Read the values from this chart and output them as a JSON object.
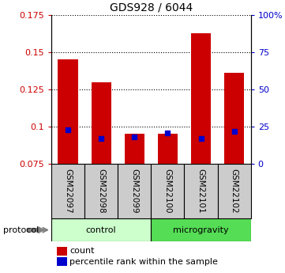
{
  "title": "GDS928 / 6044",
  "samples": [
    "GSM22097",
    "GSM22098",
    "GSM22099",
    "GSM22100",
    "GSM22101",
    "GSM22102"
  ],
  "count_values": [
    0.145,
    0.13,
    0.095,
    0.095,
    0.163,
    0.136
  ],
  "percentile_values": [
    0.098,
    0.092,
    0.093,
    0.096,
    0.092,
    0.097
  ],
  "y_min": 0.075,
  "y_max": 0.175,
  "y_ticks_left": [
    0.075,
    0.1,
    0.125,
    0.15,
    0.175
  ],
  "y_ticks_right": [
    0,
    25,
    50,
    75,
    100
  ],
  "bar_color": "#cc0000",
  "percentile_color": "#0000cc",
  "control_color_light": "#ccffcc",
  "microgravity_color": "#55dd55",
  "sample_box_color": "#cccccc",
  "legend_count_label": "count",
  "legend_percentile_label": "percentile rank within the sample",
  "protocol_label": "protocol",
  "control_label": "control",
  "microgravity_label": "microgravity"
}
